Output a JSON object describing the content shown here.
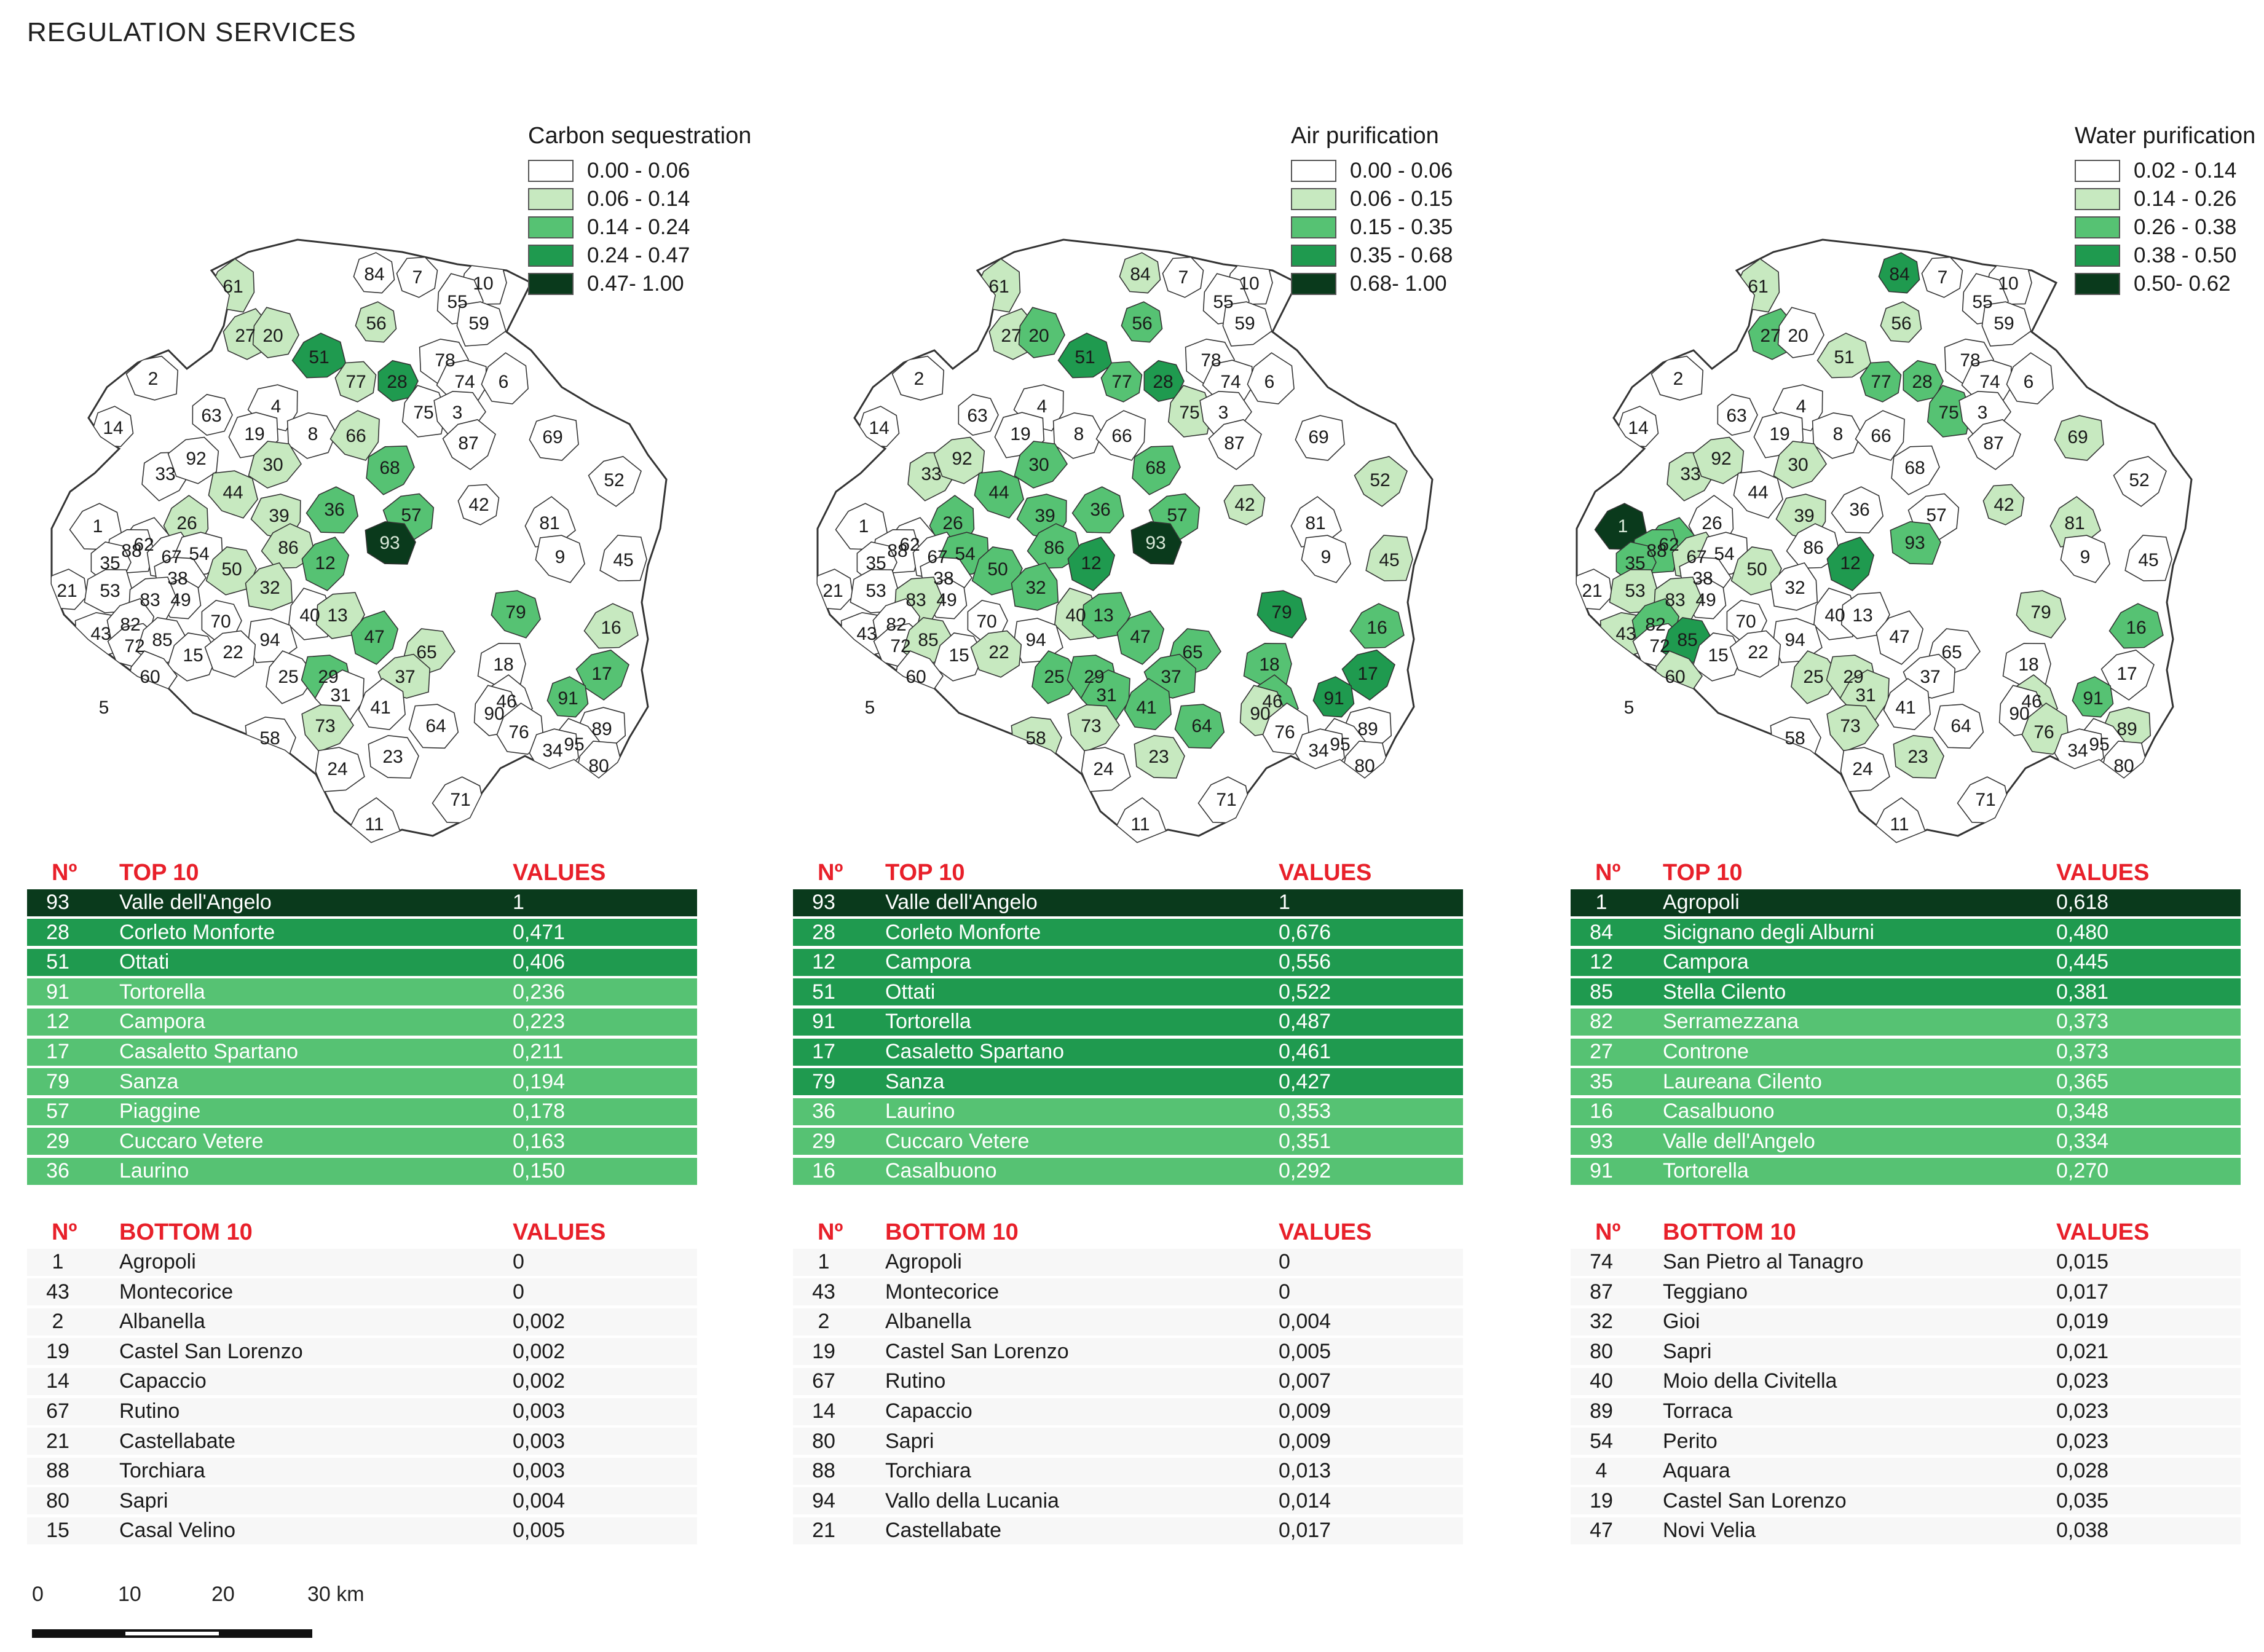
{
  "page_title": "REGULATION SERVICES",
  "colors": {
    "c1": "#ffffff",
    "c2": "#c7e9c0",
    "c3": "#56c273",
    "c4": "#1f9a4f",
    "c5": "#0a3a1c",
    "border": "#333333",
    "header_red": "#e8202a"
  },
  "table_headers": {
    "n": "Nº",
    "top": "TOP 10",
    "bottom": "BOTTOM 10",
    "values": "VALUES"
  },
  "panels": [
    {
      "legend_title": "Carbon sequestration",
      "legend": [
        "0.00 - 0.06",
        "0.06 - 0.14",
        "0.14 - 0.24",
        "0.24 - 0.47",
        "0.47- 1.00"
      ],
      "top10": [
        {
          "n": "93",
          "name": "Valle dell'Angelo",
          "value": "1",
          "cls": 5
        },
        {
          "n": "28",
          "name": "Corleto Monforte",
          "value": "0,471",
          "cls": 4
        },
        {
          "n": "51",
          "name": "Ottati",
          "value": "0,406",
          "cls": 4
        },
        {
          "n": "91",
          "name": "Tortorella",
          "value": "0,236",
          "cls": 3
        },
        {
          "n": "12",
          "name": "Campora",
          "value": "0,223",
          "cls": 3
        },
        {
          "n": "17",
          "name": "Casaletto Spartano",
          "value": "0,211",
          "cls": 3
        },
        {
          "n": "79",
          "name": "Sanza",
          "value": "0,194",
          "cls": 3
        },
        {
          "n": "57",
          "name": "Piaggine",
          "value": "0,178",
          "cls": 3
        },
        {
          "n": "29",
          "name": "Cuccaro Vetere",
          "value": "0,163",
          "cls": 3
        },
        {
          "n": "36",
          "name": "Laurino",
          "value": "0,150",
          "cls": 3
        }
      ],
      "bottom10": [
        {
          "n": "1",
          "name": "Agropoli",
          "value": "0"
        },
        {
          "n": "43",
          "name": "Montecorice",
          "value": "0"
        },
        {
          "n": "2",
          "name": "Albanella",
          "value": "0,002"
        },
        {
          "n": "19",
          "name": "Castel San Lorenzo",
          "value": "0,002"
        },
        {
          "n": "14",
          "name": "Capaccio",
          "value": "0,002"
        },
        {
          "n": "67",
          "name": "Rutino",
          "value": "0,003"
        },
        {
          "n": "21",
          "name": "Castellabate",
          "value": "0,003"
        },
        {
          "n": "88",
          "name": "Torchiara",
          "value": "0,003"
        },
        {
          "n": "80",
          "name": "Sapri",
          "value": "0,004"
        },
        {
          "n": "15",
          "name": "Casal Velino",
          "value": "0,005"
        }
      ],
      "classes": {
        "93": 5,
        "28": 4,
        "51": 4,
        "91": 3,
        "12": 3,
        "17": 3,
        "79": 3,
        "57": 3,
        "29": 3,
        "36": 3,
        "47": 3,
        "65": 2,
        "68": 3,
        "77": 2,
        "56": 2,
        "20": 2,
        "61": 2,
        "26": 2,
        "44": 2,
        "30": 2,
        "39": 2,
        "86": 2,
        "50": 2,
        "32": 2,
        "13": 2,
        "16": 2,
        "37": 2,
        "73": 2,
        "27": 2,
        "66": 2
      }
    },
    {
      "legend_title": "Air purification",
      "legend": [
        "0.00 - 0.06",
        "0.06 - 0.15",
        "0.15 - 0.35",
        "0.35 - 0.68",
        "0.68- 1.00"
      ],
      "top10": [
        {
          "n": "93",
          "name": "Valle dell'Angelo",
          "value": "1",
          "cls": 5
        },
        {
          "n": "28",
          "name": "Corleto Monforte",
          "value": "0,676",
          "cls": 4
        },
        {
          "n": "12",
          "name": "Campora",
          "value": "0,556",
          "cls": 4
        },
        {
          "n": "51",
          "name": "Ottati",
          "value": "0,522",
          "cls": 4
        },
        {
          "n": "91",
          "name": "Tortorella",
          "value": "0,487",
          "cls": 4
        },
        {
          "n": "17",
          "name": "Casaletto Spartano",
          "value": "0,461",
          "cls": 4
        },
        {
          "n": "79",
          "name": "Sanza",
          "value": "0,427",
          "cls": 4
        },
        {
          "n": "36",
          "name": "Laurino",
          "value": "0,353",
          "cls": 3
        },
        {
          "n": "29",
          "name": "Cuccaro Vetere",
          "value": "0,351",
          "cls": 3
        },
        {
          "n": "16",
          "name": "Casalbuono",
          "value": "0,292",
          "cls": 3
        }
      ],
      "bottom10": [
        {
          "n": "1",
          "name": "Agropoli",
          "value": "0"
        },
        {
          "n": "43",
          "name": "Montecorice",
          "value": "0"
        },
        {
          "n": "2",
          "name": "Albanella",
          "value": "0,004"
        },
        {
          "n": "19",
          "name": "Castel San Lorenzo",
          "value": "0,005"
        },
        {
          "n": "67",
          "name": "Rutino",
          "value": "0,007"
        },
        {
          "n": "14",
          "name": "Capaccio",
          "value": "0,009"
        },
        {
          "n": "80",
          "name": "Sapri",
          "value": "0,009"
        },
        {
          "n": "88",
          "name": "Torchiara",
          "value": "0,013"
        },
        {
          "n": "94",
          "name": "Vallo della Lucania",
          "value": "0,014"
        },
        {
          "n": "21",
          "name": "Castellabate",
          "value": "0,017"
        }
      ],
      "classes": {
        "93": 5,
        "28": 4,
        "12": 4,
        "51": 4,
        "91": 4,
        "17": 4,
        "79": 4,
        "36": 3,
        "29": 3,
        "16": 3,
        "57": 3,
        "56": 3,
        "77": 3,
        "20": 3,
        "47": 3,
        "65": 3,
        "68": 3,
        "30": 3,
        "39": 3,
        "86": 3,
        "50": 3,
        "32": 3,
        "44": 3,
        "26": 3,
        "54": 3,
        "25": 3,
        "37": 3,
        "18": 3,
        "46": 3,
        "41": 3,
        "64": 3,
        "73": 2,
        "23": 2,
        "13": 3,
        "42": 2,
        "52": 2,
        "45": 2,
        "84": 2,
        "61": 2,
        "27": 2,
        "75": 2,
        "92": 2,
        "83": 2,
        "85": 2,
        "58": 2,
        "22": 2,
        "90": 2,
        "40": 2,
        "31": 3,
        "33": 2
      }
    },
    {
      "legend_title": "Water purification",
      "legend": [
        "0.02 - 0.14",
        "0.14 - 0.26",
        "0.26 - 0.38",
        "0.38 - 0.50",
        "0.50- 0.62"
      ],
      "top10": [
        {
          "n": "1",
          "name": "Agropoli",
          "value": "0,618",
          "cls": 5
        },
        {
          "n": "84",
          "name": "Sicignano degli Alburni",
          "value": "0,480",
          "cls": 4
        },
        {
          "n": "12",
          "name": "Campora",
          "value": "0,445",
          "cls": 4
        },
        {
          "n": "85",
          "name": "Stella Cilento",
          "value": "0,381",
          "cls": 4
        },
        {
          "n": "82",
          "name": "Serramezzana",
          "value": "0,373",
          "cls": 3
        },
        {
          "n": "27",
          "name": "Controne",
          "value": "0,373",
          "cls": 3
        },
        {
          "n": "35",
          "name": "Laureana Cilento",
          "value": "0,365",
          "cls": 3
        },
        {
          "n": "16",
          "name": "Casalbuono",
          "value": "0,348",
          "cls": 3
        },
        {
          "n": "93",
          "name": "Valle dell'Angelo",
          "value": "0,334",
          "cls": 3
        },
        {
          "n": "91",
          "name": "Tortorella",
          "value": "0,270",
          "cls": 3
        }
      ],
      "bottom10": [
        {
          "n": "74",
          "name": "San Pietro al Tanagro",
          "value": "0,015"
        },
        {
          "n": "87",
          "name": "Teggiano",
          "value": "0,017"
        },
        {
          "n": "32",
          "name": "Gioi",
          "value": "0,019"
        },
        {
          "n": "80",
          "name": "Sapri",
          "value": "0,021"
        },
        {
          "n": "40",
          "name": "Moio della Civitella",
          "value": "0,023"
        },
        {
          "n": "89",
          "name": "Torraca",
          "value": "0,023"
        },
        {
          "n": "54",
          "name": "Perito",
          "value": "0,023"
        },
        {
          "n": "4",
          "name": "Aquara",
          "value": "0,028"
        },
        {
          "n": "19",
          "name": "Castel San Lorenzo",
          "value": "0,035"
        },
        {
          "n": "47",
          "name": "Novi Velia",
          "value": "0,038"
        }
      ],
      "classes": {
        "1": 5,
        "84": 4,
        "12": 4,
        "85": 4,
        "82": 3,
        "27": 3,
        "35": 3,
        "16": 3,
        "93": 3,
        "91": 3,
        "77": 3,
        "28": 3,
        "75": 3,
        "62": 3,
        "61": 2,
        "51": 2,
        "56": 2,
        "69": 2,
        "42": 2,
        "81": 2,
        "79": 2,
        "33": 2,
        "88": 3,
        "53": 2,
        "43": 2,
        "60": 2,
        "25": 2,
        "73": 2,
        "23": 2,
        "46": 2,
        "76": 2,
        "89": 2,
        "39": 2,
        "30": 2,
        "92": 2,
        "83": 2,
        "67": 2,
        "50": 2,
        "29": 2,
        "31": 2
      }
    }
  ],
  "map_labels": [
    "84",
    "7",
    "10",
    "55",
    "59",
    "61",
    "27",
    "20",
    "51",
    "56",
    "77",
    "28",
    "78",
    "74",
    "6",
    "2",
    "4",
    "75",
    "3",
    "87",
    "14",
    "63",
    "19",
    "8",
    "66",
    "69",
    "33",
    "92",
    "30",
    "68",
    "52",
    "44",
    "36",
    "57",
    "42",
    "81",
    "1",
    "26",
    "39",
    "86",
    "62",
    "88",
    "67",
    "54",
    "50",
    "12",
    "93",
    "9",
    "45",
    "35",
    "38",
    "21",
    "53",
    "49",
    "83",
    "32",
    "40",
    "13",
    "79",
    "16",
    "43",
    "82",
    "72",
    "85",
    "70",
    "15",
    "94",
    "22",
    "47",
    "65",
    "60",
    "37",
    "18",
    "17",
    "25",
    "29",
    "31",
    "46",
    "91",
    "5",
    "41",
    "64",
    "90",
    "76",
    "89",
    "73",
    "58",
    "95",
    "34",
    "80",
    "24",
    "23",
    "71",
    "11"
  ],
  "scale_labels": [
    "0",
    "10",
    "20",
    "30 km"
  ]
}
